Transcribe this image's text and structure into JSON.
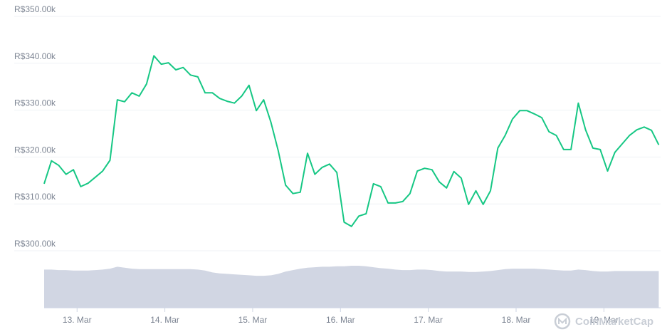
{
  "chart_data": {
    "type": "line",
    "x": [
      15,
      17,
      19,
      21,
      23,
      25,
      27,
      29,
      31,
      33,
      35,
      37,
      39,
      41,
      43,
      45,
      47,
      49,
      51,
      53,
      55,
      57,
      59,
      61,
      63,
      65,
      67,
      69,
      71,
      73,
      75,
      77,
      79,
      81,
      83,
      85,
      87,
      89,
      91,
      93,
      95,
      97,
      99,
      101,
      103,
      105,
      107,
      109,
      111,
      113,
      115,
      117,
      119,
      121,
      123,
      125,
      127,
      129,
      131,
      133,
      135,
      137,
      139,
      141,
      143,
      145,
      147,
      149,
      151,
      153,
      155,
      157,
      159,
      161,
      163,
      165,
      167,
      169,
      171,
      173,
      175,
      177,
      179,
      181,
      183
    ],
    "values": [
      314300,
      319200,
      318200,
      316300,
      317300,
      313700,
      314400,
      315700,
      317000,
      319300,
      332200,
      331800,
      333700,
      333000,
      335600,
      341600,
      339800,
      340100,
      338600,
      339100,
      337500,
      337100,
      333700,
      333700,
      332500,
      331900,
      331500,
      333000,
      335300,
      329900,
      332200,
      327400,
      321300,
      314000,
      312200,
      312500,
      320800,
      316300,
      317800,
      318500,
      316700,
      306100,
      305200,
      307400,
      307900,
      314300,
      313700,
      310200,
      310200,
      310500,
      312200,
      317000,
      317600,
      317300,
      314700,
      313400,
      316900,
      315500,
      309900,
      312800,
      309900,
      312800,
      321900,
      324600,
      328100,
      329900,
      329900,
      329200,
      328400,
      325400,
      324600,
      321600,
      321600,
      331500,
      325800,
      321900,
      321600,
      317000,
      321000,
      322800,
      324600,
      325800,
      326400,
      325700,
      322600
    ],
    "color": "#16c784",
    "xlim": [
      15,
      183.5
    ],
    "xticks": [
      {
        "value": 24,
        "label": "13. Mar"
      },
      {
        "value": 48,
        "label": "14. Mar"
      },
      {
        "value": 72,
        "label": "15. Mar"
      },
      {
        "value": 96,
        "label": "16. Mar"
      },
      {
        "value": 120,
        "label": "17. Mar"
      },
      {
        "value": 144,
        "label": "18. Mar"
      },
      {
        "value": 168,
        "label": "19. Mar"
      }
    ],
    "ylim": [
      300000,
      350000
    ],
    "yticks": [
      {
        "value": 300000,
        "label": "R$300.00k"
      },
      {
        "value": 310000,
        "label": "R$310.00k"
      },
      {
        "value": 320000,
        "label": "R$320.00k"
      },
      {
        "value": 330000,
        "label": "R$330.00k"
      },
      {
        "value": 340000,
        "label": "R$340.00k"
      },
      {
        "value": 350000,
        "label": "R$350.00k"
      }
    ],
    "grid": true,
    "volume": {
      "values": [
        80,
        80,
        79,
        79,
        78,
        78,
        78,
        79,
        80,
        82,
        86,
        84,
        82,
        81,
        81,
        81,
        81,
        81,
        81,
        81,
        81,
        80,
        78,
        74,
        72,
        71,
        70,
        69,
        68,
        67,
        67,
        68,
        71,
        76,
        79,
        82,
        84,
        85,
        86,
        86,
        87,
        87,
        88,
        88,
        87,
        85,
        83,
        82,
        80,
        79,
        79,
        80,
        80,
        79,
        77,
        76,
        76,
        76,
        75,
        75,
        76,
        77,
        79,
        81,
        82,
        82,
        82,
        82,
        81,
        80,
        79,
        78,
        78,
        80,
        79,
        77,
        76,
        76,
        77,
        77,
        77,
        77,
        77,
        77,
        77
      ],
      "ylim": [
        0,
        100
      ],
      "color": "#d1d6e3"
    },
    "watermark": "CoinMarketCap"
  }
}
